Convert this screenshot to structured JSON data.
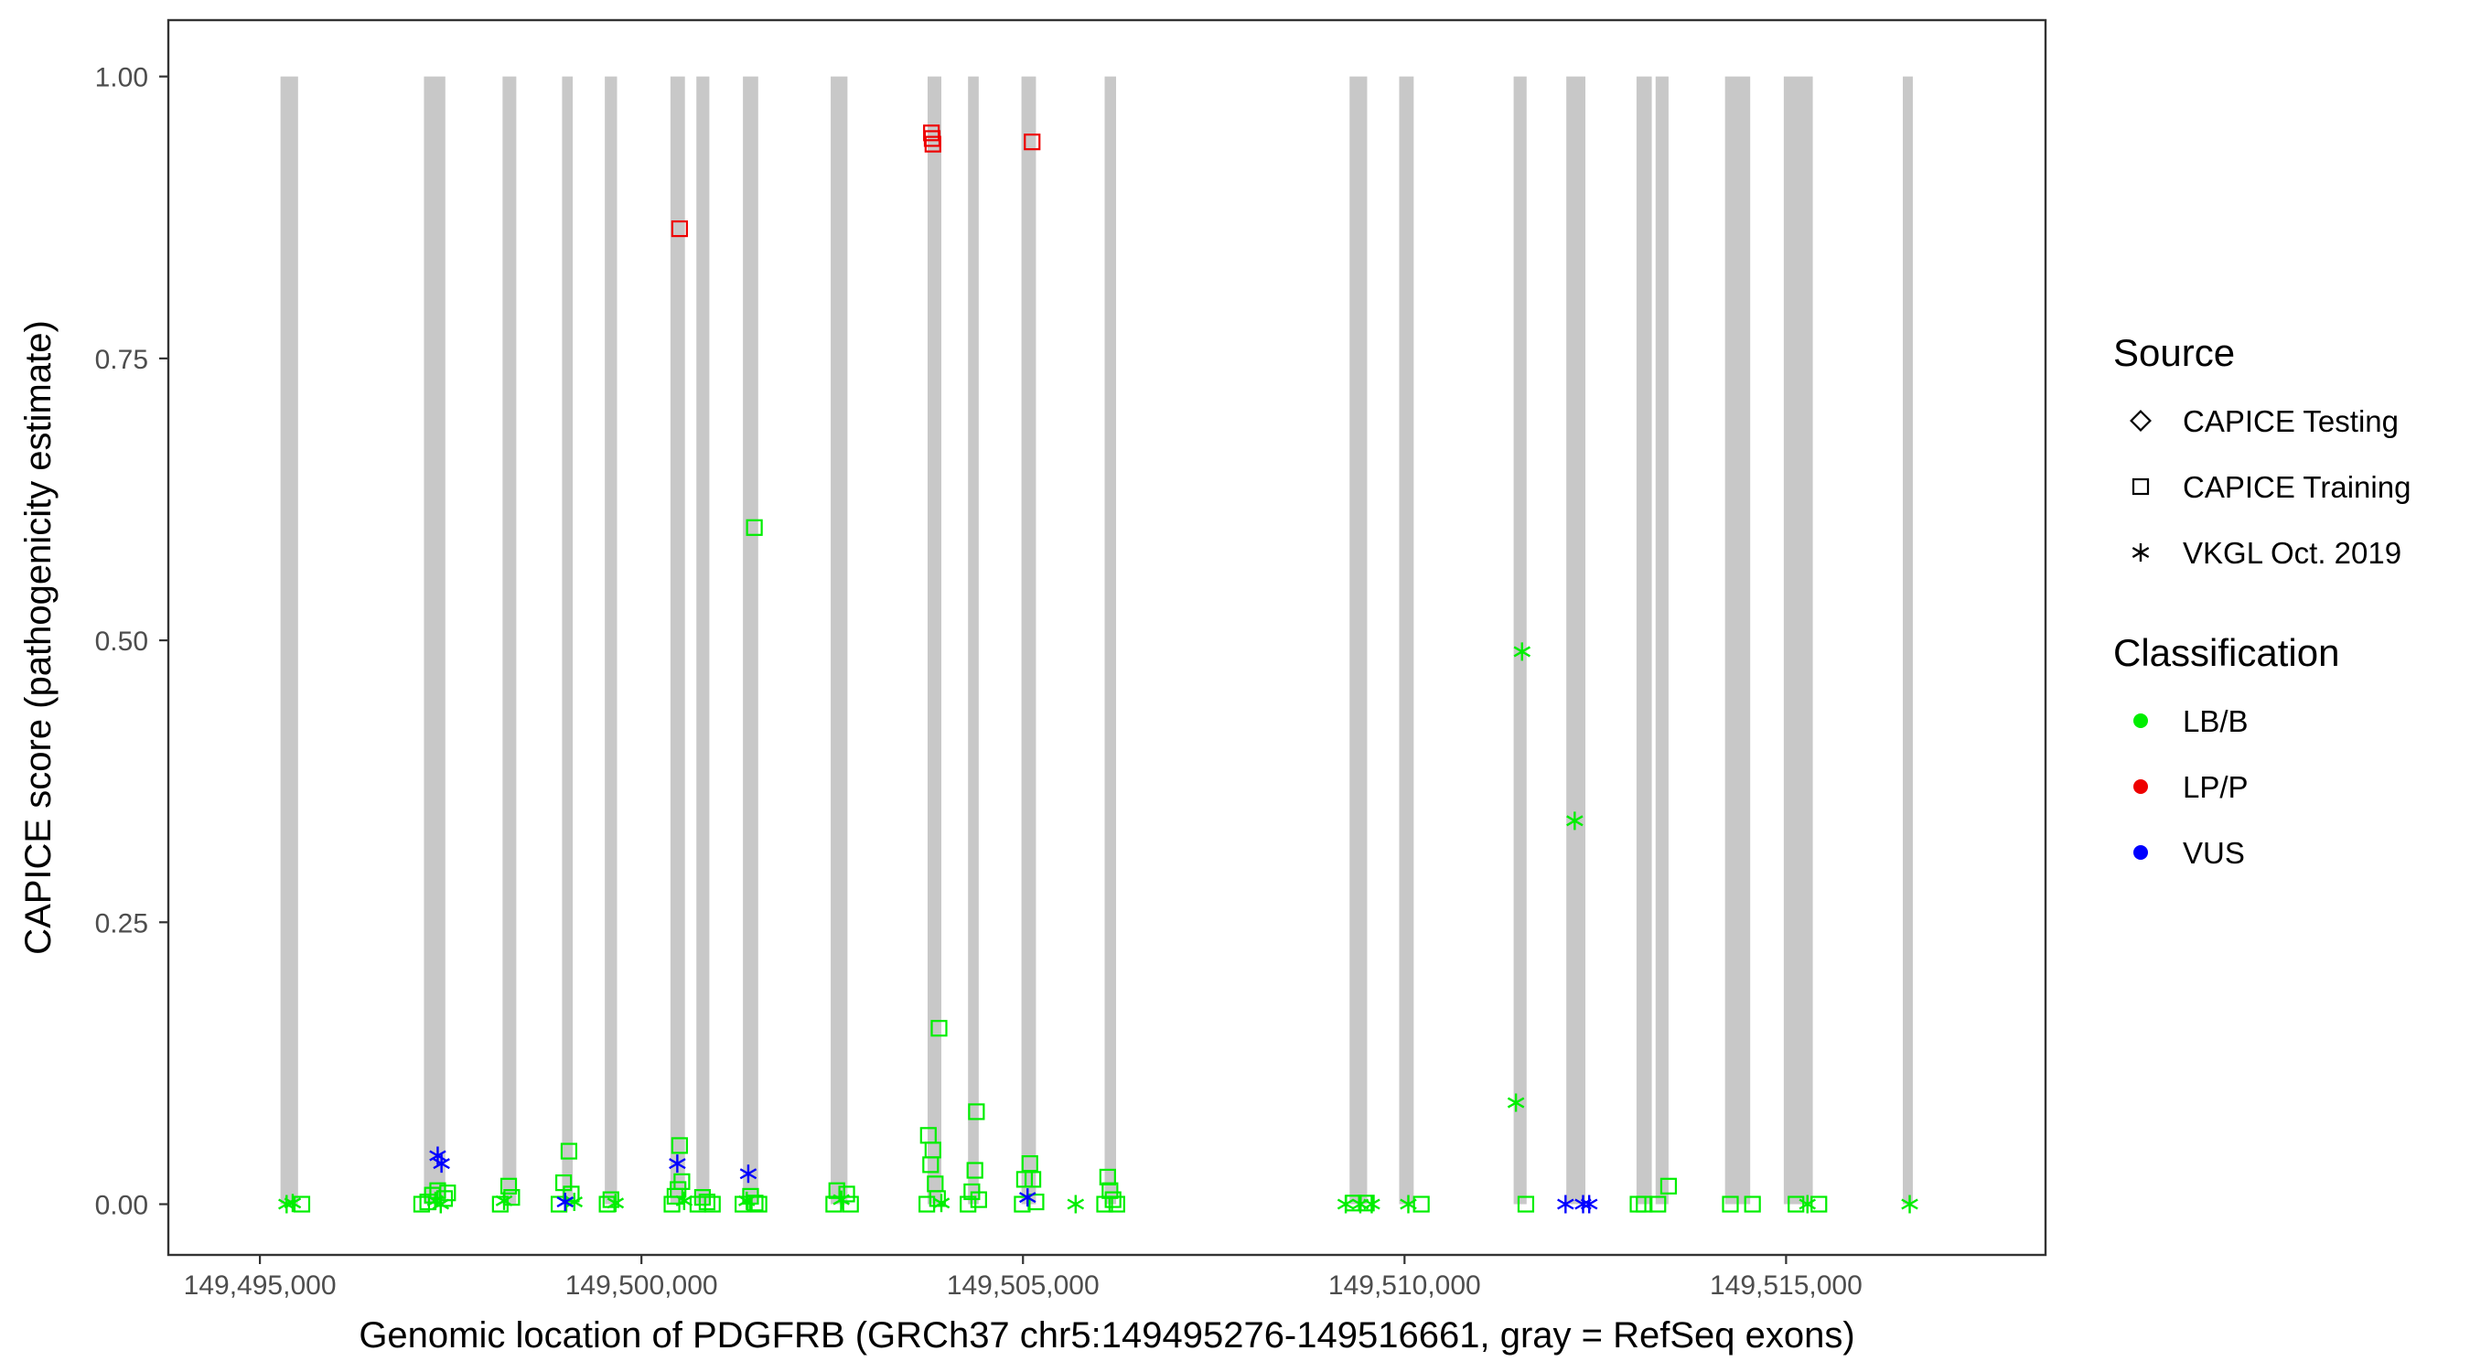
{
  "chart_data": {
    "type": "scatter",
    "title": "",
    "xlabel": "Genomic location of PDGFRB (GRCh37 chr5:149495276-149516661, gray = RefSeq exons)",
    "ylabel": "CAPICE score (pathogenicity estimate)",
    "xlim": [
      149493800,
      149518400
    ],
    "ylim": [
      -0.045,
      1.05
    ],
    "x_ticks": [
      149495000,
      149500000,
      149505000,
      149510000,
      149515000
    ],
    "x_tick_labels": [
      "149,495,000",
      "149,500,000",
      "149,505,000",
      "149,510,000",
      "149,515,000"
    ],
    "y_ticks": [
      0,
      0.25,
      0.5,
      0.75,
      1.0
    ],
    "y_tick_labels": [
      "0.00",
      "0.25",
      "0.50",
      "0.75",
      "1.00"
    ],
    "grid": false,
    "exons": [
      [
        149495270,
        149495500
      ],
      [
        149497150,
        149497430
      ],
      [
        149498180,
        149498360
      ],
      [
        149498960,
        149499100
      ],
      [
        149499520,
        149499680
      ],
      [
        149500380,
        149500570
      ],
      [
        149500720,
        149500890
      ],
      [
        149501330,
        149501530
      ],
      [
        149502480,
        149502700
      ],
      [
        149503750,
        149503930
      ],
      [
        149504280,
        149504420
      ],
      [
        149504980,
        149505170
      ],
      [
        149506070,
        149506220
      ],
      [
        149509280,
        149509510
      ],
      [
        149509930,
        149510120
      ],
      [
        149511430,
        149511600
      ],
      [
        149512120,
        149512370
      ],
      [
        149513040,
        149513240
      ],
      [
        149513290,
        149513460
      ],
      [
        149514200,
        149514530
      ],
      [
        149514970,
        149515350
      ],
      [
        149516530,
        149516661
      ]
    ],
    "legend": [
      {
        "title": "Source",
        "entries": [
          {
            "label": "CAPICE Testing",
            "shape": "diamond"
          },
          {
            "label": "CAPICE Training",
            "shape": "square"
          },
          {
            "label": "VKGL Oct. 2019",
            "shape": "asterisk"
          }
        ]
      },
      {
        "title": "Classification",
        "entries": [
          {
            "label": "LB/B",
            "color": "#00ee00"
          },
          {
            "label": "LP/P",
            "color": "#ee0000"
          },
          {
            "label": "VUS",
            "color": "#0000ff"
          }
        ]
      }
    ],
    "legend_position": "right",
    "colors": {
      "LB/B": "#00ee00",
      "LP/P": "#ee0000",
      "VUS": "#0000ff",
      "exon": "#c8c8c8"
    },
    "points": [
      {
        "x": 149495350,
        "y": 0.0,
        "cls": "LB/B",
        "src": "VKGL Oct. 2019"
      },
      {
        "x": 149495430,
        "y": 0.001,
        "cls": "LB/B",
        "src": "VKGL Oct. 2019"
      },
      {
        "x": 149495550,
        "y": 0.0,
        "cls": "LB/B",
        "src": "CAPICE Training"
      },
      {
        "x": 149497120,
        "y": 0.0,
        "cls": "LB/B",
        "src": "CAPICE Training"
      },
      {
        "x": 149497200,
        "y": 0.002,
        "cls": "LB/B",
        "src": "CAPICE Training"
      },
      {
        "x": 149497260,
        "y": 0.008,
        "cls": "LB/B",
        "src": "CAPICE Training"
      },
      {
        "x": 149497300,
        "y": 0.003,
        "cls": "LB/B",
        "src": "VKGL Oct. 2019"
      },
      {
        "x": 149497330,
        "y": 0.012,
        "cls": "LB/B",
        "src": "CAPICE Training"
      },
      {
        "x": 149497370,
        "y": 0.0,
        "cls": "LB/B",
        "src": "VKGL Oct. 2019"
      },
      {
        "x": 149497420,
        "y": 0.005,
        "cls": "LB/B",
        "src": "CAPICE Training"
      },
      {
        "x": 149497460,
        "y": 0.01,
        "cls": "LB/B",
        "src": "CAPICE Training"
      },
      {
        "x": 149497330,
        "y": 0.043,
        "cls": "VUS",
        "src": "VKGL Oct. 2019"
      },
      {
        "x": 149497380,
        "y": 0.036,
        "cls": "VUS",
        "src": "VKGL Oct. 2019"
      },
      {
        "x": 149498150,
        "y": 0.0,
        "cls": "LB/B",
        "src": "CAPICE Training"
      },
      {
        "x": 149498200,
        "y": 0.003,
        "cls": "LB/B",
        "src": "VKGL Oct. 2019"
      },
      {
        "x": 149498260,
        "y": 0.016,
        "cls": "LB/B",
        "src": "CAPICE Training"
      },
      {
        "x": 149498300,
        "y": 0.006,
        "cls": "LB/B",
        "src": "CAPICE Training"
      },
      {
        "x": 149498920,
        "y": 0.0,
        "cls": "LB/B",
        "src": "CAPICE Training"
      },
      {
        "x": 149498980,
        "y": 0.019,
        "cls": "LB/B",
        "src": "CAPICE Training"
      },
      {
        "x": 149499050,
        "y": 0.047,
        "cls": "LB/B",
        "src": "CAPICE Training"
      },
      {
        "x": 149499080,
        "y": 0.009,
        "cls": "LB/B",
        "src": "CAPICE Training"
      },
      {
        "x": 149499120,
        "y": 0.002,
        "cls": "LB/B",
        "src": "VKGL Oct. 2019"
      },
      {
        "x": 149499000,
        "y": 0.002,
        "cls": "VUS",
        "src": "VKGL Oct. 2019"
      },
      {
        "x": 149499550,
        "y": 0.0,
        "cls": "LB/B",
        "src": "CAPICE Training"
      },
      {
        "x": 149499600,
        "y": 0.004,
        "cls": "LB/B",
        "src": "CAPICE Training"
      },
      {
        "x": 149499660,
        "y": 0.001,
        "cls": "LB/B",
        "src": "VKGL Oct. 2019"
      },
      {
        "x": 149500400,
        "y": 0.0,
        "cls": "LB/B",
        "src": "CAPICE Training"
      },
      {
        "x": 149500440,
        "y": 0.007,
        "cls": "LB/B",
        "src": "CAPICE Training"
      },
      {
        "x": 149500480,
        "y": 0.013,
        "cls": "LB/B",
        "src": "CAPICE Training"
      },
      {
        "x": 149500500,
        "y": 0.052,
        "cls": "LB/B",
        "src": "CAPICE Training"
      },
      {
        "x": 149500530,
        "y": 0.02,
        "cls": "LB/B",
        "src": "CAPICE Training"
      },
      {
        "x": 149500560,
        "y": 0.003,
        "cls": "LB/B",
        "src": "VKGL Oct. 2019"
      },
      {
        "x": 149500470,
        "y": 0.036,
        "cls": "VUS",
        "src": "VKGL Oct. 2019"
      },
      {
        "x": 149500500,
        "y": 0.865,
        "cls": "LP/P",
        "src": "CAPICE Training"
      },
      {
        "x": 149500740,
        "y": 0.0,
        "cls": "LB/B",
        "src": "CAPICE Training"
      },
      {
        "x": 149500800,
        "y": 0.006,
        "cls": "LB/B",
        "src": "CAPICE Training"
      },
      {
        "x": 149500860,
        "y": 0.002,
        "cls": "LB/B",
        "src": "CAPICE Training"
      },
      {
        "x": 149500930,
        "y": 0.0,
        "cls": "LB/B",
        "src": "CAPICE Training"
      },
      {
        "x": 149501330,
        "y": 0.0,
        "cls": "LB/B",
        "src": "CAPICE Training"
      },
      {
        "x": 149501380,
        "y": 0.003,
        "cls": "LB/B",
        "src": "VKGL Oct. 2019"
      },
      {
        "x": 149501430,
        "y": 0.007,
        "cls": "LB/B",
        "src": "CAPICE Training"
      },
      {
        "x": 149501490,
        "y": 0.001,
        "cls": "LB/B",
        "src": "CAPICE Training"
      },
      {
        "x": 149501540,
        "y": 0.0,
        "cls": "LB/B",
        "src": "CAPICE Training"
      },
      {
        "x": 149501480,
        "y": 0.6,
        "cls": "LB/B",
        "src": "CAPICE Training"
      },
      {
        "x": 149501400,
        "y": 0.027,
        "cls": "VUS",
        "src": "VKGL Oct. 2019"
      },
      {
        "x": 149502520,
        "y": 0.0,
        "cls": "LB/B",
        "src": "CAPICE Training"
      },
      {
        "x": 149502560,
        "y": 0.012,
        "cls": "LB/B",
        "src": "CAPICE Training"
      },
      {
        "x": 149502620,
        "y": 0.004,
        "cls": "LB/B",
        "src": "VKGL Oct. 2019"
      },
      {
        "x": 149502690,
        "y": 0.009,
        "cls": "LB/B",
        "src": "CAPICE Training"
      },
      {
        "x": 149502740,
        "y": 0.0,
        "cls": "LB/B",
        "src": "CAPICE Training"
      },
      {
        "x": 149503740,
        "y": 0.0,
        "cls": "LB/B",
        "src": "CAPICE Training"
      },
      {
        "x": 149503760,
        "y": 0.061,
        "cls": "LB/B",
        "src": "CAPICE Training"
      },
      {
        "x": 149503790,
        "y": 0.035,
        "cls": "LB/B",
        "src": "CAPICE Training"
      },
      {
        "x": 149503820,
        "y": 0.048,
        "cls": "LB/B",
        "src": "CAPICE Training"
      },
      {
        "x": 149503850,
        "y": 0.018,
        "cls": "LB/B",
        "src": "CAPICE Training"
      },
      {
        "x": 149503880,
        "y": 0.005,
        "cls": "LB/B",
        "src": "CAPICE Training"
      },
      {
        "x": 149503900,
        "y": 0.156,
        "cls": "LB/B",
        "src": "CAPICE Training"
      },
      {
        "x": 149503930,
        "y": 0.001,
        "cls": "LB/B",
        "src": "VKGL Oct. 2019"
      },
      {
        "x": 149503800,
        "y": 0.95,
        "cls": "LP/P",
        "src": "CAPICE Training"
      },
      {
        "x": 149503810,
        "y": 0.945,
        "cls": "LP/P",
        "src": "CAPICE Training"
      },
      {
        "x": 149503820,
        "y": 0.94,
        "cls": "LP/P",
        "src": "CAPICE Training"
      },
      {
        "x": 149504280,
        "y": 0.0,
        "cls": "LB/B",
        "src": "CAPICE Training"
      },
      {
        "x": 149504330,
        "y": 0.011,
        "cls": "LB/B",
        "src": "CAPICE Training"
      },
      {
        "x": 149504370,
        "y": 0.03,
        "cls": "LB/B",
        "src": "CAPICE Training"
      },
      {
        "x": 149504390,
        "y": 0.082,
        "cls": "LB/B",
        "src": "CAPICE Training"
      },
      {
        "x": 149504420,
        "y": 0.004,
        "cls": "LB/B",
        "src": "CAPICE Training"
      },
      {
        "x": 149504990,
        "y": 0.0,
        "cls": "LB/B",
        "src": "CAPICE Training"
      },
      {
        "x": 149505020,
        "y": 0.022,
        "cls": "LB/B",
        "src": "CAPICE Training"
      },
      {
        "x": 149505090,
        "y": 0.036,
        "cls": "LB/B",
        "src": "CAPICE Training"
      },
      {
        "x": 149505130,
        "y": 0.022,
        "cls": "LB/B",
        "src": "CAPICE Training"
      },
      {
        "x": 149505170,
        "y": 0.002,
        "cls": "LB/B",
        "src": "CAPICE Training"
      },
      {
        "x": 149505060,
        "y": 0.006,
        "cls": "VUS",
        "src": "VKGL Oct. 2019"
      },
      {
        "x": 149505120,
        "y": 0.942,
        "cls": "LP/P",
        "src": "CAPICE Training"
      },
      {
        "x": 149505690,
        "y": 0.0,
        "cls": "LB/B",
        "src": "VKGL Oct. 2019"
      },
      {
        "x": 149506070,
        "y": 0.0,
        "cls": "LB/B",
        "src": "CAPICE Training"
      },
      {
        "x": 149506110,
        "y": 0.024,
        "cls": "LB/B",
        "src": "CAPICE Training"
      },
      {
        "x": 149506140,
        "y": 0.012,
        "cls": "LB/B",
        "src": "CAPICE Training"
      },
      {
        "x": 149506180,
        "y": 0.004,
        "cls": "LB/B",
        "src": "CAPICE Training"
      },
      {
        "x": 149506230,
        "y": 0.0,
        "cls": "LB/B",
        "src": "CAPICE Training"
      },
      {
        "x": 149509230,
        "y": 0.0,
        "cls": "LB/B",
        "src": "VKGL Oct. 2019"
      },
      {
        "x": 149509330,
        "y": 0.001,
        "cls": "LB/B",
        "src": "CAPICE Training"
      },
      {
        "x": 149509420,
        "y": 0.0,
        "cls": "LB/B",
        "src": "VKGL Oct. 2019"
      },
      {
        "x": 149509500,
        "y": 0.001,
        "cls": "LB/B",
        "src": "CAPICE Training"
      },
      {
        "x": 149509570,
        "y": 0.0,
        "cls": "LB/B",
        "src": "VKGL Oct. 2019"
      },
      {
        "x": 149510050,
        "y": 0.0,
        "cls": "LB/B",
        "src": "VKGL Oct. 2019"
      },
      {
        "x": 149510220,
        "y": 0.0,
        "cls": "LB/B",
        "src": "CAPICE Training"
      },
      {
        "x": 149511460,
        "y": 0.09,
        "cls": "LB/B",
        "src": "VKGL Oct. 2019"
      },
      {
        "x": 149511540,
        "y": 0.49,
        "cls": "LB/B",
        "src": "VKGL Oct. 2019"
      },
      {
        "x": 149511590,
        "y": 0.0,
        "cls": "LB/B",
        "src": "CAPICE Training"
      },
      {
        "x": 149512110,
        "y": 0.0,
        "cls": "VUS",
        "src": "VKGL Oct. 2019"
      },
      {
        "x": 149512230,
        "y": 0.34,
        "cls": "LB/B",
        "src": "VKGL Oct. 2019"
      },
      {
        "x": 149512340,
        "y": 0.0,
        "cls": "VUS",
        "src": "VKGL Oct. 2019"
      },
      {
        "x": 149512420,
        "y": 0.0,
        "cls": "VUS",
        "src": "VKGL Oct. 2019"
      },
      {
        "x": 149513060,
        "y": 0.0,
        "cls": "LB/B",
        "src": "CAPICE Training"
      },
      {
        "x": 149513140,
        "y": 0.0,
        "cls": "LB/B",
        "src": "CAPICE Training"
      },
      {
        "x": 149513320,
        "y": 0.0,
        "cls": "LB/B",
        "src": "CAPICE Training"
      },
      {
        "x": 149513460,
        "y": 0.016,
        "cls": "LB/B",
        "src": "CAPICE Training"
      },
      {
        "x": 149514270,
        "y": 0.0,
        "cls": "LB/B",
        "src": "CAPICE Training"
      },
      {
        "x": 149514560,
        "y": 0.0,
        "cls": "LB/B",
        "src": "CAPICE Training"
      },
      {
        "x": 149515130,
        "y": 0.0,
        "cls": "LB/B",
        "src": "CAPICE Training"
      },
      {
        "x": 149515280,
        "y": 0.0,
        "cls": "LB/B",
        "src": "VKGL Oct. 2019"
      },
      {
        "x": 149515430,
        "y": 0.0,
        "cls": "LB/B",
        "src": "CAPICE Training"
      },
      {
        "x": 149516620,
        "y": 0.0,
        "cls": "LB/B",
        "src": "VKGL Oct. 2019"
      }
    ]
  }
}
